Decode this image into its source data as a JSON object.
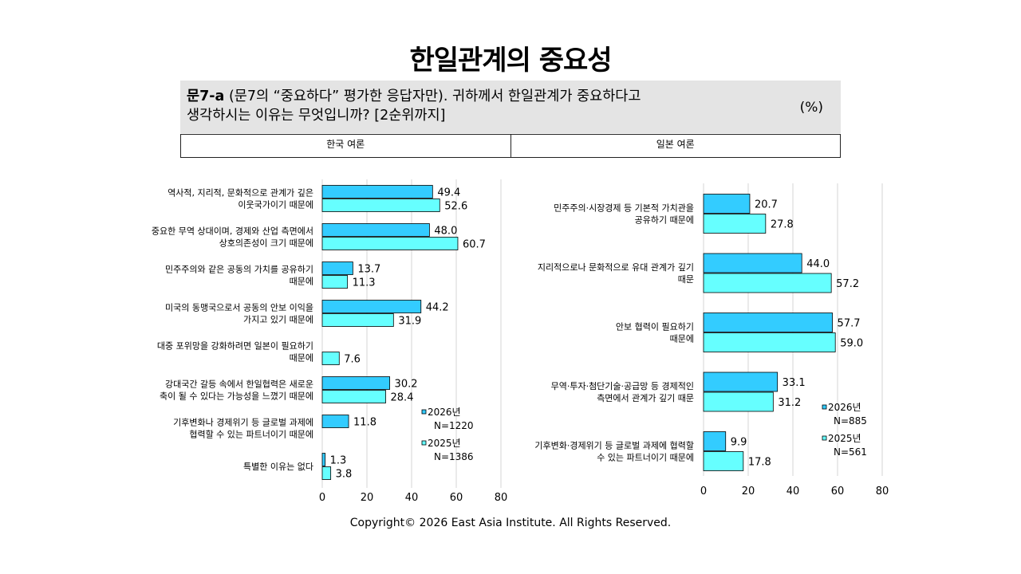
{
  "title": "한일관계의 중요성",
  "question": {
    "number": "문7-a",
    "line1": "(문7의 “중요하다” 평가한 응답자만). 귀하께서 한일관계가 중요하다고",
    "line2": "생각하시는 이유는 무엇입니까? [2순위까지]",
    "unit": "(%)"
  },
  "headers": {
    "korea": "한국 여론",
    "japan": "일본 여론"
  },
  "copyright": "Copyright© 2026 East Asia Institute. All Rights Reserved.",
  "colors": {
    "series_2026": "#33ccff",
    "series_2025": "#66ffff",
    "grid": "#d4d4d4",
    "border": "#000000"
  },
  "chart_data": [
    {
      "type": "bar",
      "orientation": "horizontal",
      "categories": [
        [
          "역사적, 지리적, 문화적으로 관계가 깊은",
          "이웃국가이기 때문에"
        ],
        [
          "중요한 무역 상대이며, 경제와 산업 측면에서",
          "상호의존성이 크기 때문에"
        ],
        [
          "민주주의와 같은 공동의 가치를 공유하기",
          "때문에"
        ],
        [
          "미국의 동맹국으로서 공동의 안보 이익을",
          "가지고 있기 때문에"
        ],
        [
          "대중 포위망을 강화하려면 일본이 필요하기",
          "때문에"
        ],
        [
          "강대국간 갈등 속에서 한일협력은 새로운",
          "축이 될 수 있다는 가능성을 느꼈기 때문에"
        ],
        [
          "기후변화나 경제위기 등 글로벌 과제에",
          "협력할 수 있는 파트너이기 때문에"
        ],
        [
          "특별한 이유는 없다"
        ]
      ],
      "series": [
        {
          "name": "2026년",
          "n": "N=1220",
          "values": [
            49.4,
            48.0,
            13.7,
            44.2,
            null,
            30.2,
            11.8,
            1.3
          ]
        },
        {
          "name": "2025년",
          "n": "N=1386",
          "values": [
            52.6,
            60.7,
            11.3,
            31.9,
            7.6,
            28.4,
            null,
            3.8
          ]
        }
      ],
      "xlim": [
        0,
        80
      ],
      "xticks": [
        0,
        20,
        40,
        60,
        80
      ],
      "grid": true,
      "legend": "bottom-right"
    },
    {
      "type": "bar",
      "orientation": "horizontal",
      "categories": [
        [
          "민주주의·시장경제  등 기본적 가치관을",
          "공유하기 때문에"
        ],
        [
          "지리적으로나 문화적으로 유대 관계가 깊기",
          "때문"
        ],
        [
          "안보 협력이 필요하기",
          "때문에"
        ],
        [
          "무역·투자·첨단기술·공급망  등 경제적인",
          "측면에서 관계가 깊기 때문"
        ],
        [
          "기후변화·경제위기  등 글로벌 과제에 협력할",
          "수 있는 파트너이기 때문에"
        ]
      ],
      "series": [
        {
          "name": "2026년",
          "n": "N=885",
          "values": [
            20.7,
            44.0,
            57.7,
            33.1,
            9.9
          ]
        },
        {
          "name": "2025년",
          "n": "N=561",
          "values": [
            27.8,
            57.2,
            59.0,
            31.2,
            17.8
          ]
        }
      ],
      "xlim": [
        0,
        80
      ],
      "xticks": [
        0,
        20,
        40,
        60,
        80
      ],
      "grid": true,
      "legend": "bottom-right"
    }
  ]
}
